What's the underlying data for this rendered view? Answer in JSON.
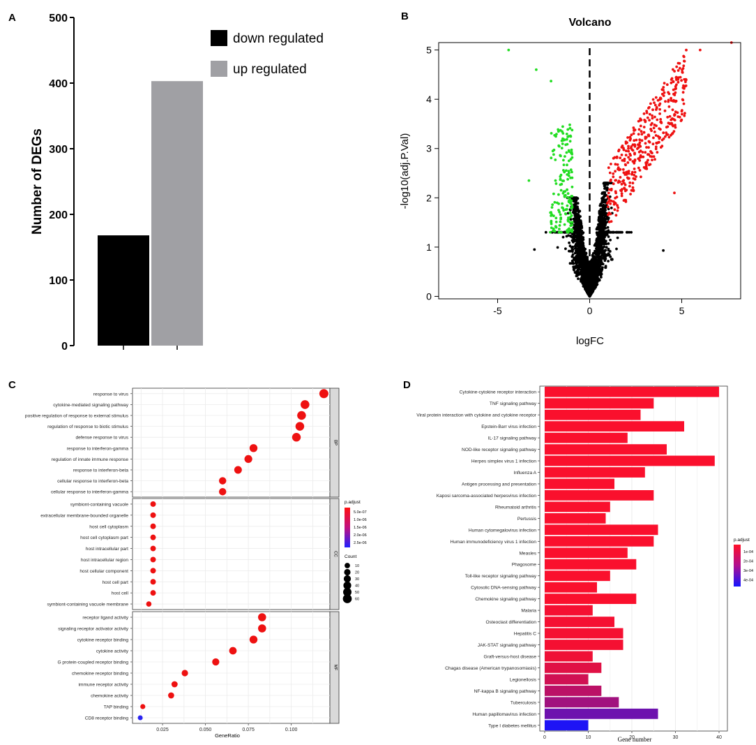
{
  "panels": {
    "A": "A",
    "B": "B",
    "C": "C",
    "D": "D"
  },
  "chart_data": [
    {
      "id": "A",
      "type": "bar",
      "categories": [
        "down regulated",
        "up regulated"
      ],
      "values": [
        168,
        403
      ],
      "colors": [
        "#000000",
        "#a0a0a4"
      ],
      "title": "",
      "xlabel": "",
      "ylabel": "Number of DEGs",
      "ylim": [
        0,
        500
      ],
      "yticks": [
        0,
        100,
        200,
        300,
        400,
        500
      ],
      "legend": [
        "down regulated",
        "up regulated"
      ],
      "legend_position": "top-right"
    },
    {
      "id": "B",
      "type": "scatter",
      "title": "Volcano",
      "xlabel": "logFC",
      "ylabel": "-log10(adj.P.Val)",
      "xlim": [
        -8.2,
        8.2
      ],
      "ylim": [
        -0.05,
        5.15
      ],
      "xticks": [
        -5,
        0,
        5
      ],
      "yticks": [
        0,
        1,
        2,
        3,
        4,
        5
      ],
      "colors": {
        "down": "#22dd22",
        "up": "#ee1111",
        "ns": "#000000"
      },
      "series_counts": {
        "down": 168,
        "up": 403
      },
      "notable_points": [
        {
          "x": -4.4,
          "y": 5.0,
          "group": "down"
        },
        {
          "x": -2.9,
          "y": 4.6,
          "group": "down"
        },
        {
          "x": -2.1,
          "y": 4.37,
          "group": "down"
        },
        {
          "x": -3.3,
          "y": 2.35,
          "group": "down"
        },
        {
          "x": -2.0,
          "y": 2.95,
          "group": "down"
        },
        {
          "x": 7.7,
          "y": 5.15,
          "group": "up"
        },
        {
          "x": 6.0,
          "y": 5.0,
          "group": "up"
        },
        {
          "x": 4.6,
          "y": 2.1,
          "group": "up"
        },
        {
          "x": 4.8,
          "y": 4.4,
          "group": "up"
        },
        {
          "x": 4.0,
          "y": 0.93,
          "group": "ns"
        },
        {
          "x": -3.0,
          "y": 0.95,
          "group": "ns"
        }
      ]
    },
    {
      "id": "C",
      "type": "scatter",
      "subtype": "dotplot",
      "xlabel": "GeneRatio",
      "xlim": [
        0.0075,
        0.1225
      ],
      "xticks": [
        0.025,
        0.05,
        0.075,
        0.1
      ],
      "xticklabels": [
        "0.025",
        "0.050",
        "0.075",
        "0.100"
      ],
      "color_legend": {
        "title": "p.adjust",
        "labels": [
          "5.0e-07",
          "1.0e-06",
          "1.5e-06",
          "2.0e-06",
          "2.5e-06"
        ]
      },
      "size_legend": {
        "title": "Count",
        "values": [
          10,
          20,
          30,
          40,
          50,
          60
        ]
      },
      "facets": [
        {
          "strip": "BP",
          "terms": [
            {
              "term": "response to virus",
              "ratio": 0.119,
              "count": 64,
              "p": 1e-10
            },
            {
              "term": "cytokine-mediated signaling pathway",
              "ratio": 0.108,
              "count": 58,
              "p": 1e-10
            },
            {
              "term": "positive regulation of response to external stimulus",
              "ratio": 0.106,
              "count": 57,
              "p": 1e-10
            },
            {
              "term": "regulation of response to biotic stimulus",
              "ratio": 0.105,
              "count": 56,
              "p": 1e-10
            },
            {
              "term": "defense response to virus",
              "ratio": 0.103,
              "count": 55,
              "p": 1e-10
            },
            {
              "term": "response to interferon-gamma",
              "ratio": 0.078,
              "count": 42,
              "p": 1e-10
            },
            {
              "term": "regulation of innate immune response",
              "ratio": 0.075,
              "count": 40,
              "p": 1e-10
            },
            {
              "term": "response to interferon-beta",
              "ratio": 0.069,
              "count": 37,
              "p": 1e-10
            },
            {
              "term": "cellular response to interferon-beta",
              "ratio": 0.06,
              "count": 32,
              "p": 1e-10
            },
            {
              "term": "cellular response to interferon-gamma",
              "ratio": 0.06,
              "count": 32,
              "p": 1e-10
            }
          ]
        },
        {
          "strip": "CC",
          "terms": [
            {
              "term": "symbiont-containing vacuole",
              "ratio": 0.0195,
              "count": 11,
              "p": 1e-10
            },
            {
              "term": "extracellular membrane-bounded organelle",
              "ratio": 0.0195,
              "count": 11,
              "p": 1e-10
            },
            {
              "term": "host cell cytoplasm",
              "ratio": 0.0195,
              "count": 11,
              "p": 1e-10
            },
            {
              "term": "host cell cytoplasm part",
              "ratio": 0.0195,
              "count": 11,
              "p": 1e-10
            },
            {
              "term": "host intracellular part",
              "ratio": 0.0195,
              "count": 11,
              "p": 1e-10
            },
            {
              "term": "host intracellular region",
              "ratio": 0.0195,
              "count": 11,
              "p": 1e-10
            },
            {
              "term": "host cellular component",
              "ratio": 0.0195,
              "count": 11,
              "p": 1e-10
            },
            {
              "term": "host cell part",
              "ratio": 0.0195,
              "count": 11,
              "p": 1e-10
            },
            {
              "term": "host cell",
              "ratio": 0.0195,
              "count": 11,
              "p": 1e-10
            },
            {
              "term": "symbiont-containing vacuole membrane",
              "ratio": 0.017,
              "count": 9,
              "p": 1e-10
            }
          ]
        },
        {
          "strip": "MF",
          "terms": [
            {
              "term": "receptor ligand activity",
              "ratio": 0.083,
              "count": 44,
              "p": 1e-10
            },
            {
              "term": "signaling receptor activator activity",
              "ratio": 0.083,
              "count": 44,
              "p": 1e-10
            },
            {
              "term": "cytokine receptor binding",
              "ratio": 0.078,
              "count": 42,
              "p": 1e-10
            },
            {
              "term": "cytokine activity",
              "ratio": 0.066,
              "count": 35,
              "p": 1e-10
            },
            {
              "term": "G protein-coupled receptor binding",
              "ratio": 0.056,
              "count": 30,
              "p": 1e-10
            },
            {
              "term": "chemokine receptor binding",
              "ratio": 0.038,
              "count": 20,
              "p": 1e-10
            },
            {
              "term": "immune receptor activity",
              "ratio": 0.032,
              "count": 17,
              "p": 1e-10
            },
            {
              "term": "chemokine activity",
              "ratio": 0.03,
              "count": 16,
              "p": 1e-10
            },
            {
              "term": "TAP binding",
              "ratio": 0.0135,
              "count": 7,
              "p": 1e-10
            },
            {
              "term": "CD8 receptor binding",
              "ratio": 0.012,
              "count": 6,
              "p": 2.5e-06
            }
          ]
        }
      ]
    },
    {
      "id": "D",
      "type": "bar",
      "orientation": "horizontal",
      "xlabel": "Gene number",
      "xlim": [
        0,
        41
      ],
      "xticks": [
        0,
        10,
        20,
        30,
        40
      ],
      "color_legend": {
        "title": "p.adjust",
        "labels": [
          "1e-04",
          "2e-04",
          "3e-04",
          "4e-04"
        ]
      },
      "categories": [
        "Cytokine-cytokine receptor interaction",
        "TNF signaling pathway",
        "Viral protein interaction with cytokine and cytokine receptor",
        "Epstein-Barr virus infection",
        "IL-17 signaling pathway",
        "NOD-like receptor signaling pathway",
        "Herpes simplex virus 1 infection",
        "Influenza A",
        "Antigen processing and presentation",
        "Kaposi sarcoma-associated herpesvirus infection",
        "Rheumatoid arthritis",
        "Pertussis",
        "Human cytomegalovirus infection",
        "Human immunodeficiency virus 1 infection",
        "Measles",
        "Phagosome",
        "Toll-like receptor signaling pathway",
        "Cytosolic DNA-sensing pathway",
        "Chemokine signaling pathway",
        "Malaria",
        "Osteoclast differentiation",
        "Hepatitis C",
        "JAK-STAT signaling pathway",
        "Graft-versus-host disease",
        "Chagas disease (American trypanosomiasis)",
        "Legionellosis",
        "NF-kappa B signaling pathway",
        "Tuberculosis",
        "Human papillomavirus infection",
        "Type I diabetes mellitus"
      ],
      "values": [
        40,
        25,
        22,
        32,
        19,
        28,
        39,
        23,
        16,
        25,
        15,
        14,
        26,
        25,
        19,
        21,
        15,
        12,
        21,
        11,
        16,
        18,
        18,
        11,
        13,
        10,
        13,
        17,
        26,
        10
      ],
      "p_adjust": [
        1e-05,
        1e-05,
        1e-05,
        1e-05,
        1e-05,
        1e-05,
        1e-05,
        1e-05,
        1e-05,
        1e-05,
        1e-05,
        1e-05,
        1e-05,
        1e-05,
        1e-05,
        1e-05,
        1e-05,
        1e-05,
        1e-05,
        2e-05,
        2e-05,
        2e-05,
        2e-05,
        3e-05,
        6e-05,
        9e-05,
        0.00013,
        0.00018,
        0.00028,
        0.00043
      ]
    }
  ]
}
